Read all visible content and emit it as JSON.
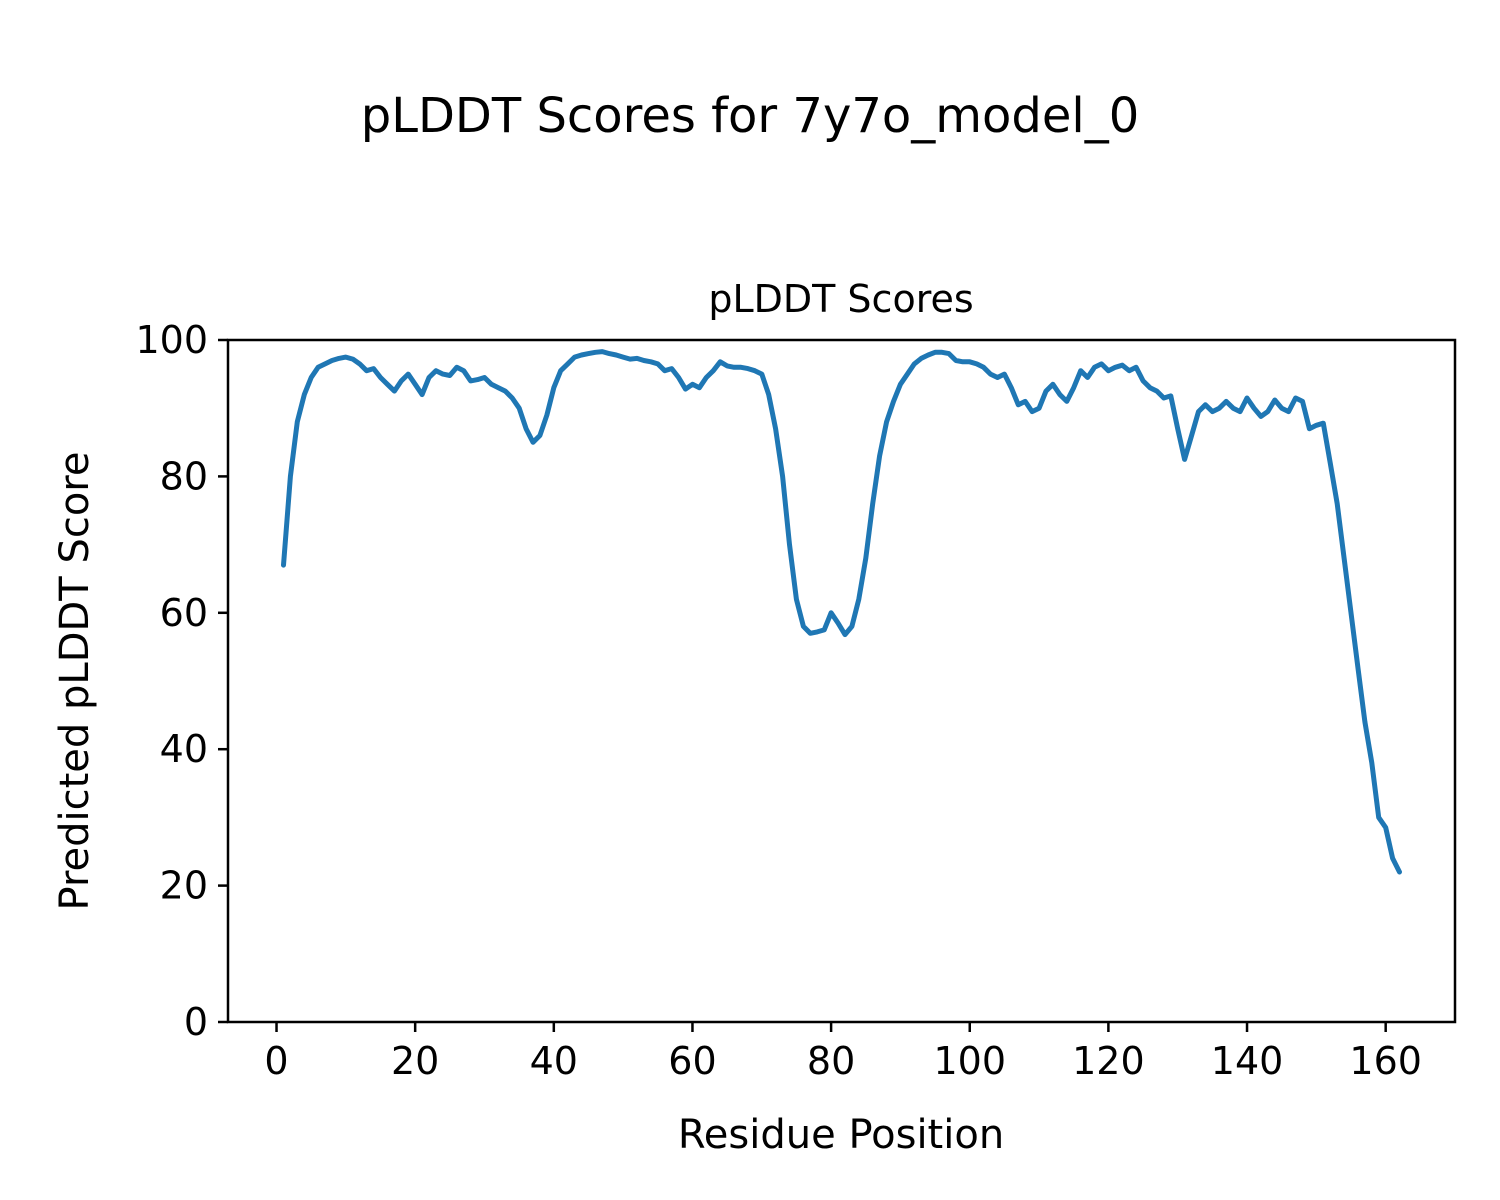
{
  "figure": {
    "title": "pLDDT Scores for 7y7o_model_0"
  },
  "chart_data": {
    "type": "line",
    "title": "pLDDT Scores",
    "xlabel": "Residue Position",
    "ylabel": "Predicted pLDDT Score",
    "xlim": [
      -7,
      170
    ],
    "ylim": [
      0,
      100
    ],
    "xticks": [
      0,
      20,
      40,
      60,
      80,
      100,
      120,
      140,
      160
    ],
    "yticks": [
      0,
      20,
      40,
      60,
      80,
      100
    ],
    "grid": false,
    "legend": null,
    "line_color": "#1f77b4",
    "line_width": 5,
    "series": [
      {
        "name": "pLDDT",
        "x_start": 1,
        "y": [
          67,
          80,
          88,
          92,
          94.5,
          96,
          96.5,
          97,
          97.3,
          97.5,
          97.2,
          96.5,
          95.5,
          95.8,
          94.5,
          93.5,
          92.5,
          94,
          95,
          93.5,
          92,
          94.5,
          95.5,
          95,
          94.8,
          96,
          95.5,
          94,
          94.2,
          94.5,
          93.5,
          93,
          92.5,
          91.5,
          90,
          87,
          85,
          86,
          89,
          93,
          95.5,
          96.5,
          97.5,
          97.8,
          98,
          98.2,
          98.3,
          98,
          97.8,
          97.5,
          97.2,
          97.3,
          97,
          96.8,
          96.5,
          95.5,
          95.8,
          94.5,
          92.8,
          93.5,
          93,
          94.5,
          95.5,
          96.8,
          96.2,
          96,
          96,
          95.8,
          95.5,
          95,
          92,
          87,
          80,
          70,
          62,
          58,
          57,
          57.2,
          57.5,
          60,
          58.5,
          56.8,
          58,
          62,
          68,
          76,
          83,
          88,
          91,
          93.5,
          95,
          96.5,
          97.3,
          97.8,
          98.2,
          98.2,
          98,
          97,
          96.8,
          96.8,
          96.5,
          96,
          95,
          94.5,
          95,
          93,
          90.5,
          91,
          89.5,
          90,
          92.5,
          93.5,
          92,
          91,
          93,
          95.5,
          94.5,
          96,
          96.5,
          95.5,
          96,
          96.3,
          95.5,
          96,
          94,
          93,
          92.5,
          91.5,
          91.8,
          87,
          82.5,
          86,
          89.5,
          90.5,
          89.5,
          90,
          91,
          90,
          89.5,
          91.5,
          90,
          88.8,
          89.5,
          91.2,
          90,
          89.5,
          91.5,
          91,
          87,
          87.5,
          87.8,
          82,
          76,
          68,
          60,
          52,
          44,
          38,
          30,
          28.5,
          24,
          22
        ]
      }
    ]
  }
}
